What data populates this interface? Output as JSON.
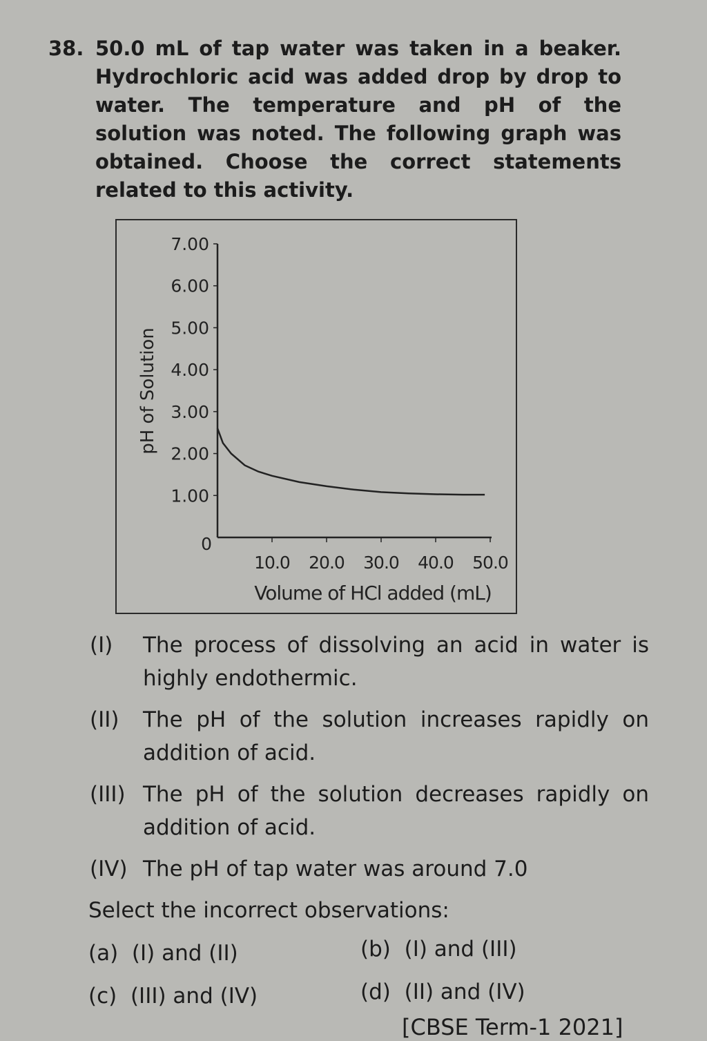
{
  "question": {
    "number": "38.",
    "text": "50.0 mL of tap water was taken in a beaker. Hydrochloric acid was added drop by drop to water. The temperature and pH of the solution was noted. The following graph was obtained. Choose the correct statements related to this activity."
  },
  "chart_data": {
    "type": "line",
    "xlabel": "Volume of HCl added (mL)",
    "ylabel": "pH of Solution",
    "xlim": [
      0,
      50
    ],
    "ylim": [
      0,
      7
    ],
    "x_ticks": [
      "10.0",
      "20.0",
      "30.0",
      "40.0",
      "50.0"
    ],
    "y_ticks": [
      "0",
      "1.00",
      "2.00",
      "3.00",
      "4.00",
      "5.00",
      "6.00",
      "7.00"
    ],
    "grid": false,
    "series": [
      {
        "x": [
          0,
          1,
          2.5,
          5,
          7.5,
          10,
          15,
          20,
          25,
          30,
          35,
          40,
          45,
          49
        ],
        "y": [
          2.6,
          2.25,
          2.0,
          1.72,
          1.57,
          1.47,
          1.32,
          1.22,
          1.14,
          1.08,
          1.05,
          1.03,
          1.02,
          1.02
        ]
      }
    ]
  },
  "statements": [
    {
      "label": "(I)",
      "text": "The process of dissolving an acid in water is highly endothermic."
    },
    {
      "label": "(II)",
      "text": "The pH of the solution increases rapidly on addition of acid."
    },
    {
      "label": "(III)",
      "text": "The pH of the solution decreases rapidly on addition of acid."
    },
    {
      "label": "(IV)",
      "text": "The pH of tap water was around 7.0"
    }
  ],
  "prompt": "Select the incorrect observations:",
  "options": [
    {
      "label": "(a)",
      "text": "(I) and (II)"
    },
    {
      "label": "(b)",
      "text": "(I) and (III)"
    },
    {
      "label": "(c)",
      "text": "(III) and (IV)"
    },
    {
      "label": "(d)",
      "text": "(II) and (IV)"
    }
  ],
  "source": "[CBSE Term-1 2021]"
}
